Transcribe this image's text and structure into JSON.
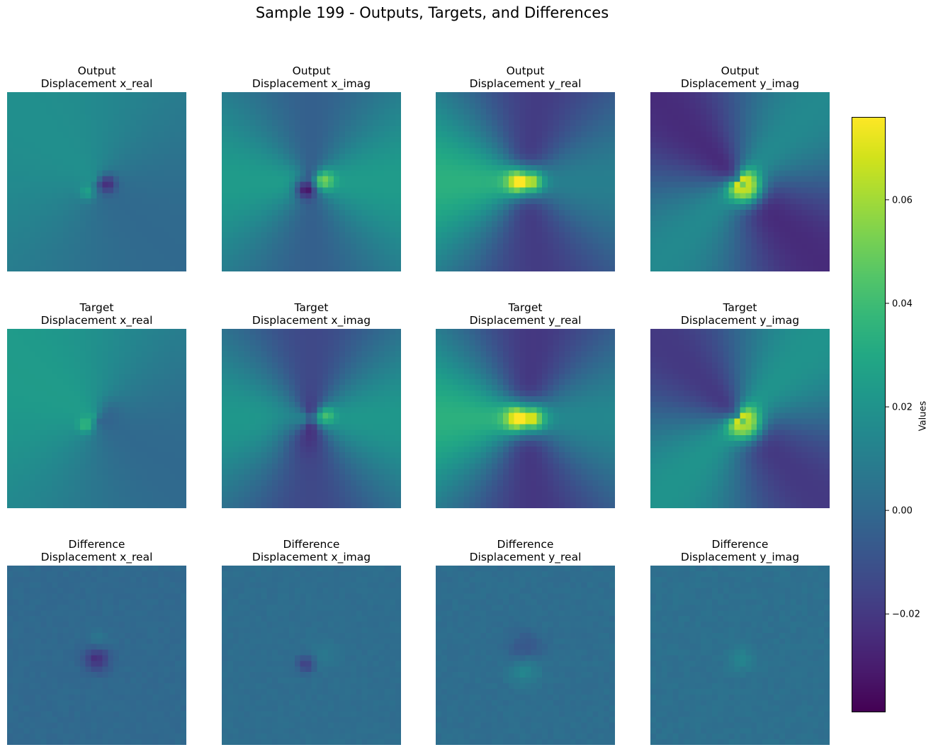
{
  "figure": {
    "title": "Sample 199 - Outputs, Targets, and Differences"
  },
  "panels": [
    {
      "row_label": "Output",
      "col_label": "Displacement x_real"
    },
    {
      "row_label": "Output",
      "col_label": "Displacement x_imag"
    },
    {
      "row_label": "Output",
      "col_label": "Displacement y_real"
    },
    {
      "row_label": "Output",
      "col_label": "Displacement y_imag"
    },
    {
      "row_label": "Target",
      "col_label": "Displacement x_real"
    },
    {
      "row_label": "Target",
      "col_label": "Displacement x_imag"
    },
    {
      "row_label": "Target",
      "col_label": "Displacement y_real"
    },
    {
      "row_label": "Target",
      "col_label": "Displacement y_imag"
    },
    {
      "row_label": "Difference",
      "col_label": "Displacement x_real"
    },
    {
      "row_label": "Difference",
      "col_label": "Displacement x_imag"
    },
    {
      "row_label": "Difference",
      "col_label": "Displacement y_real"
    },
    {
      "row_label": "Difference",
      "col_label": "Displacement y_imag"
    }
  ],
  "chart_data": {
    "type": "heatmap",
    "colormap": "viridis",
    "grid_size": 32,
    "vmin": -0.039,
    "vmax": 0.076,
    "colorbar": {
      "label": "Values",
      "ticks": [
        -0.02,
        0.0,
        0.02,
        0.04,
        0.06
      ],
      "tick_labels": [
        "−0.02",
        "0.00",
        "0.02",
        "0.04",
        "0.06"
      ]
    },
    "rows": [
      "Output",
      "Target",
      "Difference"
    ],
    "columns": [
      "Displacement x_real",
      "Displacement x_imag",
      "Displacement y_real",
      "Displacement y_imag"
    ],
    "approx_ranges": {
      "Output Displacement x_real": [
        -0.03,
        0.035
      ],
      "Output Displacement x_imag": [
        -0.039,
        0.045
      ],
      "Output Displacement y_real": [
        -0.025,
        0.076
      ],
      "Output Displacement y_imag": [
        -0.025,
        0.076
      ],
      "Target Displacement x_real": [
        -0.01,
        0.045
      ],
      "Target Displacement x_imag": [
        -0.025,
        0.04
      ],
      "Target Displacement y_real": [
        -0.025,
        0.076
      ],
      "Target Displacement y_imag": [
        -0.025,
        0.07
      ],
      "Difference Displacement x_real": [
        -0.025,
        0.015
      ],
      "Difference Displacement x_imag": [
        -0.02,
        0.015
      ],
      "Difference Displacement y_real": [
        -0.015,
        0.02
      ],
      "Difference Displacement y_imag": [
        -0.005,
        0.015
      ]
    }
  }
}
